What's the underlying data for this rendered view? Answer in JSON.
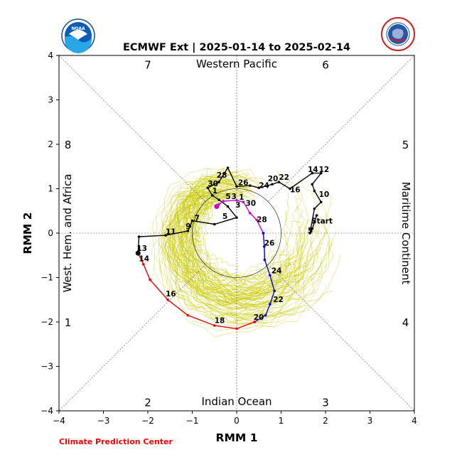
{
  "chart_data": {
    "type": "line",
    "title": "ECMWF Ext | 2025-01-14 to 2025-02-14",
    "xlabel": "RMM 1",
    "ylabel": "RMM 2",
    "xlim": [
      -4,
      4
    ],
    "ylim": [
      -4,
      4
    ],
    "xticks": [
      "−4",
      "−3",
      "−2",
      "−1",
      "0",
      "1",
      "2",
      "3",
      "4"
    ],
    "yticks": [
      "−4",
      "−3",
      "−2",
      "−1",
      "0",
      "1",
      "2",
      "3",
      "4"
    ],
    "region_labels": {
      "top": "Western Pacific",
      "bottom": "Indian Ocean",
      "left": "West. Hem. and Africa",
      "right": "Maritime Continent"
    },
    "phase_labels": [
      {
        "text": "7",
        "x": -2.0,
        "y": 3.8
      },
      {
        "text": "6",
        "x": 2.0,
        "y": 3.8
      },
      {
        "text": "8",
        "x": -3.8,
        "y": 2.0
      },
      {
        "text": "5",
        "x": 3.8,
        "y": 2.0
      },
      {
        "text": "1",
        "x": -3.8,
        "y": -2.0
      },
      {
        "text": "4",
        "x": 3.8,
        "y": -2.0
      },
      {
        "text": "2",
        "x": -2.0,
        "y": -3.8
      },
      {
        "text": "3",
        "x": 2.0,
        "y": -3.8
      }
    ],
    "credit": "Climate Prediction Center",
    "colors": {
      "observed": "#000000",
      "forecast_magenta": "#cc00cc",
      "forecast_blue": "#0000dd",
      "forecast_red": "#ee0000",
      "ensemble": "#c8c800",
      "credit": "#ff0000"
    },
    "series": [
      {
        "points": [
          [
            1.8,
            0.4
          ],
          [
            1.75,
            0.25
          ],
          [
            1.7,
            0.1
          ],
          [
            1.65,
            0.0
          ],
          [
            1.75,
            0.55
          ],
          [
            1.9,
            0.7
          ],
          [
            1.75,
            0.95
          ],
          [
            1.7,
            1.1
          ],
          [
            1.9,
            1.35
          ],
          [
            1.7,
            1.35
          ],
          [
            1.2,
            1.0
          ],
          [
            0.95,
            1.15
          ],
          [
            0.8,
            1.1
          ],
          [
            0.5,
            1.02
          ],
          [
            0.3,
            1.07
          ],
          [
            0.0,
            1.05
          ],
          [
            -0.2,
            1.47
          ],
          [
            -0.4,
            1.15
          ],
          [
            -0.65,
            1.02
          ],
          [
            -0.55,
            0.85
          ],
          [
            -0.4,
            0.75
          ],
          [
            -0.2,
            0.6
          ],
          [
            0.0,
            0.35
          ],
          [
            -0.5,
            0.2
          ],
          [
            -1.0,
            0.28
          ],
          [
            -1.05,
            0.15
          ],
          [
            -1.1,
            0.05
          ],
          [
            -1.6,
            -0.05
          ],
          [
            -2.2,
            -0.08
          ],
          [
            -2.22,
            -0.45
          ]
        ]
      },
      {
        "points": [
          [
            -0.45,
            0.6
          ],
          [
            -0.4,
            0.65
          ],
          [
            -0.3,
            0.72
          ],
          [
            0.0,
            0.74
          ],
          [
            0.15,
            0.7
          ],
          [
            0.3,
            0.45
          ],
          [
            0.45,
            0.3
          ],
          [
            0.6,
            0.0
          ]
        ]
      },
      {
        "points": [
          [
            0.6,
            0.0
          ],
          [
            0.62,
            -0.3
          ],
          [
            0.63,
            -0.6
          ],
          [
            0.75,
            -0.95
          ],
          [
            0.85,
            -1.3
          ],
          [
            0.75,
            -1.6
          ],
          [
            0.65,
            -1.85
          ],
          [
            0.4,
            -2.0
          ]
        ]
      },
      {
        "points": [
          [
            -2.22,
            -0.45
          ],
          [
            -2.1,
            -0.7
          ],
          [
            -1.95,
            -1.05
          ],
          [
            -1.55,
            -1.5
          ],
          [
            -1.1,
            -1.85
          ],
          [
            -0.5,
            -2.08
          ],
          [
            0.0,
            -2.15
          ],
          [
            0.4,
            -2.0
          ]
        ]
      }
    ],
    "point_labels": [
      {
        "text": "Start",
        "x": 1.68,
        "y": 0.22
      },
      {
        "text": "5",
        "x": 1.6,
        "y": 0.0
      },
      {
        "text": "10",
        "x": 1.85,
        "y": 0.82
      },
      {
        "text": "12",
        "x": 1.85,
        "y": 1.38
      },
      {
        "text": "14",
        "x": 1.6,
        "y": 1.38
      },
      {
        "text": "16",
        "x": 1.2,
        "y": 0.92
      },
      {
        "text": "20",
        "x": 0.7,
        "y": 1.17
      },
      {
        "text": "22",
        "x": 0.95,
        "y": 1.2
      },
      {
        "text": "24",
        "x": 0.5,
        "y": 1.02
      },
      {
        "text": "26",
        "x": 0.03,
        "y": 1.08
      },
      {
        "text": "28",
        "x": -0.45,
        "y": 1.25
      },
      {
        "text": "30",
        "x": -0.65,
        "y": 1.06
      },
      {
        "text": "1",
        "x": -0.55,
        "y": 0.9
      },
      {
        "text": "5",
        "x": -0.25,
        "y": 0.77
      },
      {
        "text": "3",
        "x": -0.12,
        "y": 0.77
      },
      {
        "text": "1",
        "x": 0.05,
        "y": 0.75
      },
      {
        "text": "30",
        "x": 0.2,
        "y": 0.62
      },
      {
        "text": "3",
        "x": -0.03,
        "y": 0.58
      },
      {
        "text": "5",
        "x": -0.32,
        "y": 0.32
      },
      {
        "text": "7",
        "x": -0.95,
        "y": 0.28
      },
      {
        "text": "9",
        "x": -1.15,
        "y": 0.1
      },
      {
        "text": "11",
        "x": -1.6,
        "y": -0.02
      },
      {
        "text": "13",
        "x": -2.25,
        "y": -0.4
      },
      {
        "text": "14",
        "x": -2.2,
        "y": -0.63
      },
      {
        "text": "16",
        "x": -1.6,
        "y": -1.42
      },
      {
        "text": "18",
        "x": -0.5,
        "y": -2.02
      },
      {
        "text": "20",
        "x": 0.38,
        "y": -1.95
      },
      {
        "text": "22",
        "x": 0.82,
        "y": -1.55
      },
      {
        "text": "24",
        "x": 0.78,
        "y": -0.9
      },
      {
        "text": "26",
        "x": 0.62,
        "y": -0.28
      },
      {
        "text": "28",
        "x": 0.45,
        "y": 0.25
      }
    ],
    "unit_circle_radius": 1.0,
    "grid": false
  }
}
